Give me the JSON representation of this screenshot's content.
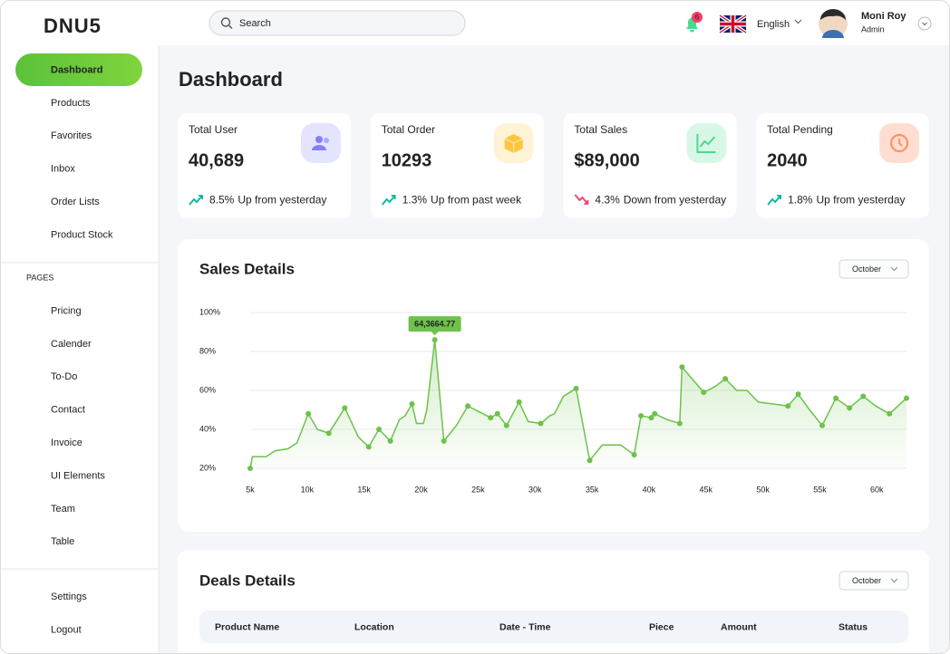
{
  "header": {
    "logo": "DNU5",
    "search": "Search",
    "notifications": "6",
    "language": "English",
    "user_name": "Moni Roy",
    "user_role": "Admin"
  },
  "sidebar": {
    "menu": [
      "Dashboard",
      "Products",
      "Favorites",
      "Inbox",
      "Order Lists",
      "Product Stock"
    ],
    "section": "PAGES",
    "pages": [
      "Pricing",
      "Calender",
      "To-Do",
      "Contact",
      "Invoice",
      "UI Elements",
      "Team",
      "Table"
    ],
    "footer": [
      "Settings",
      "Logout"
    ]
  },
  "page_title": "Dashboard",
  "stats": [
    {
      "title": "Total User",
      "value": "40,689",
      "change": "8.5%",
      "note": "Up from yesterday",
      "trend": "up",
      "color": "#8280ff"
    },
    {
      "title": "Total Order",
      "value": "10293",
      "change": "1.3%",
      "note": "Up from past week",
      "trend": "up",
      "color": "#fec53d"
    },
    {
      "title": "Total Sales",
      "value": "$89,000",
      "change": "4.3%",
      "note": "Down from yesterday",
      "trend": "down",
      "color": "#4ad991"
    },
    {
      "title": "Total Pending",
      "value": "2040",
      "change": "1.8%",
      "note": "Up from yesterday",
      "trend": "up",
      "color": "#ff9066"
    }
  ],
  "chart_data": {
    "type": "line",
    "title": "Sales Details",
    "dropdown": "October",
    "x": [
      5000,
      5200,
      6400,
      7200,
      8300,
      9100,
      10100,
      10900,
      11900,
      13300,
      14500,
      15400,
      16300,
      17300,
      18100,
      18600,
      19200,
      19600,
      20200,
      20500,
      21200,
      22000,
      23100,
      24100,
      25100,
      26100,
      26700,
      27500,
      28600,
      29400,
      30500,
      31300,
      31700,
      32500,
      33600,
      34800,
      35900,
      37500,
      38700,
      39300,
      40200,
      40500,
      41600,
      42700,
      42900,
      44800,
      45800,
      46700,
      47700,
      48600,
      49600,
      50900,
      52200,
      53100,
      54100,
      55200,
      56400,
      57600,
      58800,
      59900,
      61100,
      62600
    ],
    "series": [
      {
        "color": "#6cc24a",
        "values": [
          20,
          26,
          26,
          29,
          30,
          33,
          48,
          40,
          38,
          51,
          36,
          31,
          40,
          34,
          45,
          47,
          53,
          43,
          43,
          50,
          86,
          34,
          42,
          52,
          49,
          46,
          48,
          42,
          54,
          44,
          43,
          47,
          48,
          57,
          61,
          24,
          32,
          32,
          27,
          47,
          46,
          48,
          45,
          43,
          72,
          59,
          62,
          66,
          60,
          60,
          54,
          53,
          52,
          58,
          50,
          42,
          56,
          51,
          57,
          52,
          48,
          56
        ]
      }
    ],
    "xlim": [
      5000,
      62600
    ],
    "xticks": [
      {
        "value": 5000,
        "label": "5k"
      },
      {
        "value": 10000,
        "label": "10k"
      },
      {
        "value": 15000,
        "label": "15k"
      },
      {
        "value": 20000,
        "label": "20k"
      },
      {
        "value": 25000,
        "label": "25k"
      },
      {
        "value": 30000,
        "label": "30k"
      },
      {
        "value": 35000,
        "label": "35k"
      },
      {
        "value": 40000,
        "label": "40k"
      },
      {
        "value": 45000,
        "label": "45k"
      },
      {
        "value": 50000,
        "label": "50k"
      },
      {
        "value": 55000,
        "label": "55k"
      },
      {
        "value": 60000,
        "label": "60k"
      }
    ],
    "ylim": [
      20,
      100
    ],
    "yticks": [
      {
        "value": 20,
        "label": "20%"
      },
      {
        "value": 40,
        "label": "40%"
      },
      {
        "value": 60,
        "label": "60%"
      },
      {
        "value": 80,
        "label": "80%"
      },
      {
        "value": 100,
        "label": "100%"
      }
    ],
    "grid": true,
    "annotation": {
      "text": "64,3664.77"
    }
  },
  "deals": {
    "title": "Deals Details",
    "dropdown": "October",
    "columns": [
      "Product Name",
      "Location",
      "Date - Time",
      "Piece",
      "Amount",
      "Status"
    ]
  }
}
